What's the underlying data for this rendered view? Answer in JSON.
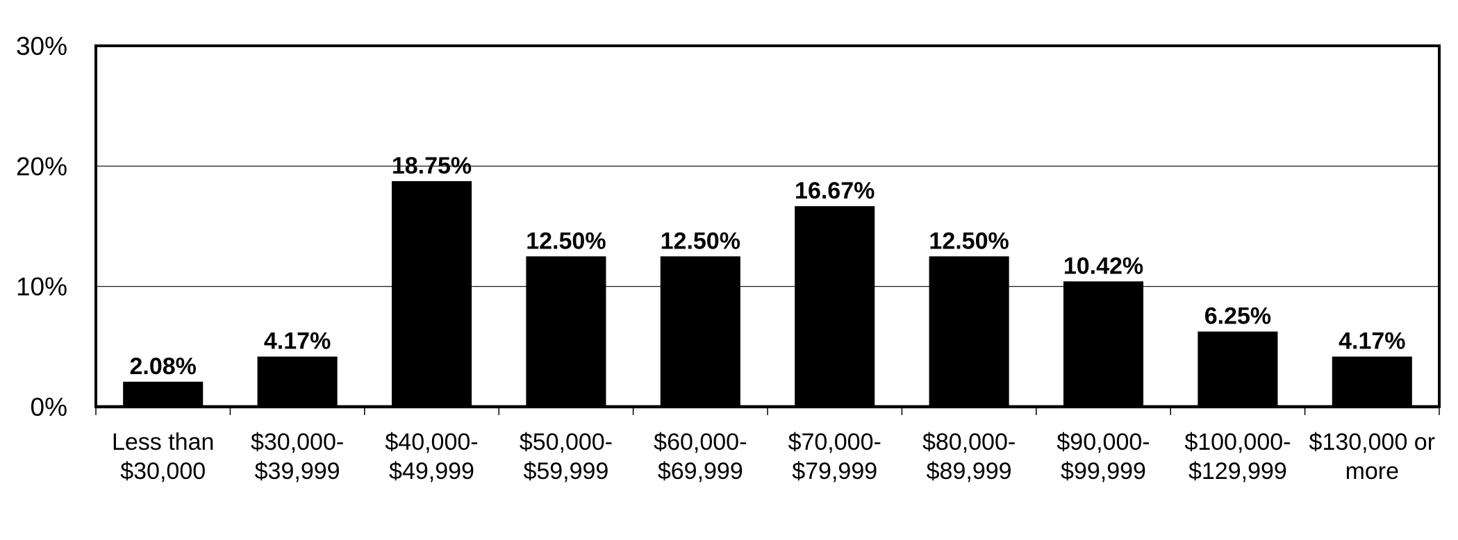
{
  "chart_data": {
    "type": "bar",
    "categories": [
      [
        "Less than",
        "$30,000"
      ],
      [
        "$30,000-",
        "$39,999"
      ],
      [
        "$40,000-",
        "$49,999"
      ],
      [
        "$50,000-",
        "$59,999"
      ],
      [
        "$60,000-",
        "$69,999"
      ],
      [
        "$70,000-",
        "$79,999"
      ],
      [
        "$80,000-",
        "$89,999"
      ],
      [
        "$90,000-",
        "$99,999"
      ],
      [
        "$100,000-",
        "$129,999"
      ],
      [
        "$130,000 or",
        "more"
      ]
    ],
    "values": [
      2.08,
      4.17,
      18.75,
      12.5,
      12.5,
      16.67,
      12.5,
      10.42,
      6.25,
      4.17
    ],
    "data_labels": [
      "2.08%",
      "4.17%",
      "18.75%",
      "12.50%",
      "12.50%",
      "16.67%",
      "12.50%",
      "10.42%",
      "6.25%",
      "4.17%"
    ],
    "y_ticks": [
      {
        "value": 0,
        "label": "0%"
      },
      {
        "value": 10,
        "label": "10%"
      },
      {
        "value": 20,
        "label": "20%"
      },
      {
        "value": 30,
        "label": "30%"
      }
    ],
    "ylim": [
      0,
      30
    ],
    "grid": true,
    "bar_color": "#000000",
    "grid_color": "#000000"
  }
}
